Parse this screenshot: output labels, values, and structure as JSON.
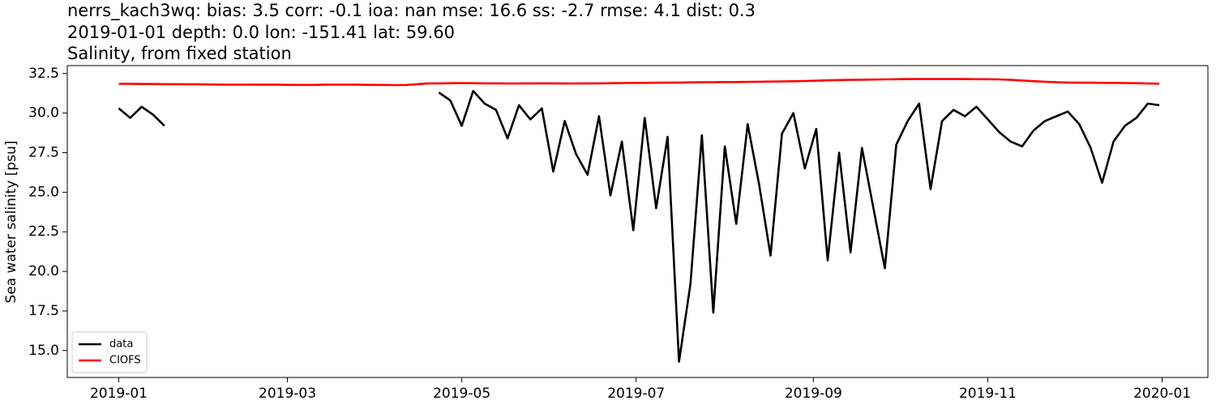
{
  "chart_data": {
    "type": "line",
    "title": "nerrs_kach3wq: bias: 3.5  corr: -0.1  ioa: nan  mse: 16.6  ss: -2.7  rmse: 4.1  dist: 0.3",
    "subtitle": "2019-01-01 depth: 0.0 lon: -151.41 lat: 59.60",
    "subtitle2": "Salinity, from fixed station",
    "y_label": "Sea water salinity [psu]",
    "x": [
      0,
      4,
      8,
      12,
      16,
      20,
      24,
      28,
      32,
      36,
      40,
      44,
      48,
      52,
      56,
      60,
      64,
      68,
      72,
      76,
      80,
      84,
      88,
      92,
      96,
      100,
      104,
      108,
      112,
      116,
      120,
      124,
      128,
      132,
      136,
      140,
      144,
      148,
      152,
      156,
      160,
      164,
      168,
      172,
      176,
      180,
      184,
      188,
      192,
      196,
      200,
      204,
      208,
      212,
      216,
      220,
      224,
      228,
      232,
      236,
      240,
      244,
      248,
      252,
      256,
      260,
      264,
      268,
      272,
      276,
      280,
      284,
      288,
      292,
      296,
      300,
      304,
      308,
      312,
      316,
      320,
      324,
      328,
      332,
      336,
      340,
      344,
      348,
      352,
      356,
      360,
      364
    ],
    "series": [
      {
        "name": "data",
        "color": "#000000",
        "values": [
          30.3,
          29.7,
          30.4,
          29.9,
          29.2,
          null,
          null,
          null,
          null,
          null,
          null,
          null,
          null,
          null,
          null,
          null,
          null,
          null,
          null,
          null,
          null,
          null,
          null,
          null,
          null,
          null,
          null,
          null,
          31.3,
          30.8,
          29.2,
          31.4,
          30.6,
          30.2,
          28.4,
          30.5,
          29.6,
          30.3,
          26.3,
          29.5,
          27.4,
          26.1,
          29.8,
          24.8,
          28.2,
          22.6,
          29.7,
          24.0,
          28.5,
          14.3,
          19.2,
          28.6,
          17.4,
          27.9,
          23.0,
          29.3,
          25.5,
          21.0,
          28.7,
          30.0,
          26.5,
          29.0,
          20.7,
          27.5,
          21.2,
          27.8,
          24.0,
          20.2,
          28.0,
          29.5,
          30.6,
          25.2,
          29.5,
          30.2,
          29.8,
          30.4,
          29.6,
          28.8,
          28.2,
          27.9,
          28.9,
          29.5,
          29.8,
          30.1,
          29.3,
          27.8,
          25.6,
          28.2,
          29.2,
          29.7,
          30.6,
          30.5
        ]
      },
      {
        "name": "CIOFS",
        "color": "#ff0000",
        "values": [
          31.85,
          31.85,
          31.84,
          31.84,
          31.83,
          31.83,
          31.82,
          31.82,
          31.81,
          31.8,
          31.8,
          31.8,
          31.79,
          31.79,
          31.79,
          31.78,
          31.78,
          31.78,
          31.79,
          31.8,
          31.8,
          31.79,
          31.78,
          31.78,
          31.77,
          31.77,
          31.82,
          31.87,
          31.88,
          31.89,
          31.9,
          31.89,
          31.88,
          31.88,
          31.87,
          31.87,
          31.88,
          31.88,
          31.88,
          31.87,
          31.87,
          31.88,
          31.88,
          31.89,
          31.9,
          31.91,
          31.91,
          31.92,
          31.92,
          31.93,
          31.94,
          31.95,
          31.95,
          31.96,
          31.96,
          31.97,
          31.98,
          31.99,
          32.0,
          32.01,
          32.03,
          32.05,
          32.07,
          32.09,
          32.1,
          32.11,
          32.12,
          32.13,
          32.14,
          32.15,
          32.15,
          32.15,
          32.15,
          32.15,
          32.15,
          32.14,
          32.14,
          32.13,
          32.1,
          32.06,
          32.02,
          31.98,
          31.95,
          31.93,
          31.92,
          31.92,
          31.91,
          31.91,
          31.9,
          31.89,
          31.87,
          31.86
        ]
      }
    ],
    "xlim": [
      -18,
      381
    ],
    "xticks": [
      {
        "value": 0,
        "label": "2019-01"
      },
      {
        "value": 59,
        "label": "2019-03"
      },
      {
        "value": 120,
        "label": "2019-05"
      },
      {
        "value": 181,
        "label": "2019-07"
      },
      {
        "value": 243,
        "label": "2019-09"
      },
      {
        "value": 304,
        "label": "2019-11"
      },
      {
        "value": 365,
        "label": "2020-01"
      }
    ],
    "ylim": [
      13.3,
      33.0
    ],
    "yticks": [
      {
        "value": 15,
        "label": "15.0"
      },
      17.5,
      {
        "value": 20,
        "label": "20.0"
      },
      22.5,
      {
        "value": 25,
        "label": "25.0"
      },
      27.5,
      {
        "value": 30,
        "label": "30.0"
      },
      32.5
    ],
    "legend": "lower left"
  }
}
